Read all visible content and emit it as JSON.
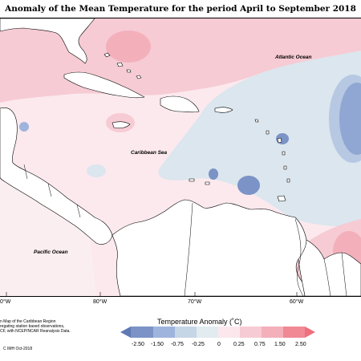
{
  "title": "Anomaly of the Mean Temperature for the period April to September 2018",
  "map": {
    "labels": {
      "atlantic": "Atlantic Ocean",
      "caribbean": "Caribbean Sea",
      "pacific": "Pacific Ocean"
    },
    "longitudes": [
      "0°W",
      "80°W",
      "70°W",
      "60°W"
    ]
  },
  "credits": {
    "lines": [
      "n Map of the Caribbean Region",
      "regating station based observations,",
      "CF, with NCEP/NCAR Reanalysis Data."
    ],
    "copyright": "C IMH Oct-2018"
  },
  "legend": {
    "title": "Temperature Anomaly (˚C)",
    "ticks": [
      "-2.50",
      "-1.50",
      "-0.75",
      "-0.25",
      "0",
      "0.25",
      "0.75",
      "1.50",
      "2.50"
    ],
    "colors": {
      "-2.50_-1.50": "#7b93c6",
      "-1.50_-0.75": "#9fb4dc",
      "-0.75_-0.25": "#c5d6e6",
      "-0.25_0": "#e1ebf0",
      "0_0.25": "#fbe7ec",
      "0.25_0.75": "#f6cbd4",
      "0.75_1.50": "#f3b0bb",
      "1.50_2.50": "#f08994"
    }
  }
}
